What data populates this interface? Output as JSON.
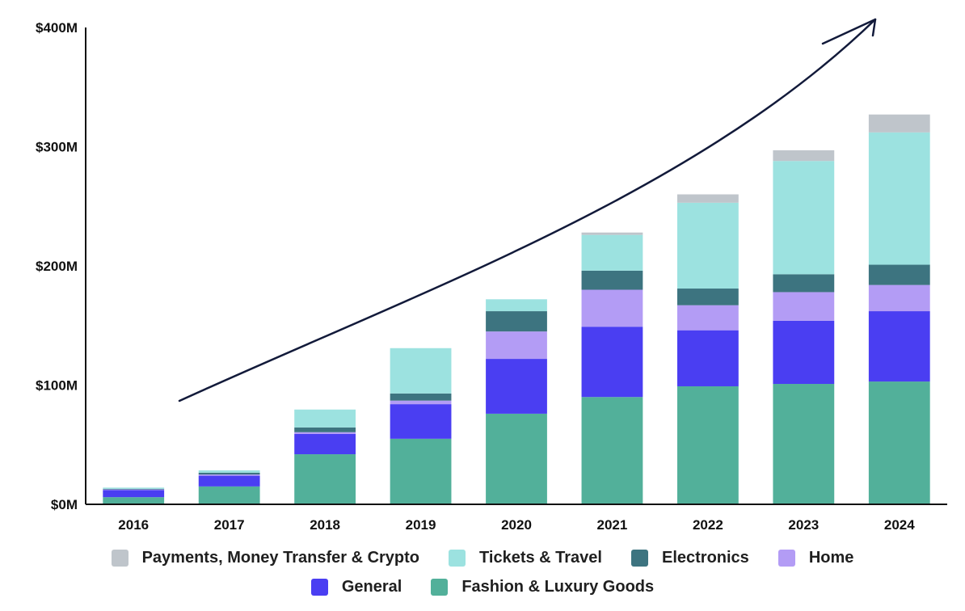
{
  "chart_data": {
    "type": "bar",
    "stacked": true,
    "categories": [
      "2016",
      "2017",
      "2018",
      "2019",
      "2020",
      "2021",
      "2022",
      "2023",
      "2024"
    ],
    "ylim": [
      0,
      400
    ],
    "yticks": [
      0,
      100,
      200,
      300,
      400
    ],
    "ytick_labels": [
      "$0M",
      "$100M",
      "$200M",
      "$300M",
      "$400M"
    ],
    "series": [
      {
        "name": "Fashion & Luxury Goods",
        "color": "#52b09a",
        "values": [
          6,
          15,
          42,
          55,
          76,
          90,
          99,
          101,
          103
        ]
      },
      {
        "name": "General",
        "color": "#4a3ef2",
        "values": [
          6,
          9,
          17,
          29,
          46,
          59,
          47,
          53,
          59
        ]
      },
      {
        "name": "Home",
        "color": "#b39cf5",
        "values": [
          0.5,
          1,
          1.5,
          3,
          23,
          31,
          21,
          24,
          22
        ]
      },
      {
        "name": "Electronics",
        "color": "#3d7480",
        "values": [
          0.5,
          1.5,
          4,
          6,
          17,
          16,
          14,
          15,
          17
        ]
      },
      {
        "name": "Tickets & Travel",
        "color": "#9ce2e0",
        "values": [
          1,
          2,
          15,
          38,
          10,
          30,
          72,
          95,
          111
        ]
      },
      {
        "name": "Payments, Money Transfer & Crypto",
        "color": "#bfc5cb",
        "values": [
          0,
          0,
          0,
          0,
          0,
          2,
          7,
          9,
          15
        ]
      }
    ],
    "trend_arrow": true,
    "legend": {
      "placement": "bottom",
      "rows": [
        [
          "Payments, Money Transfer & Crypto",
          "Tickets & Travel",
          "Electronics",
          "Home"
        ],
        [
          "General",
          "Fashion & Luxury Goods"
        ]
      ]
    }
  }
}
